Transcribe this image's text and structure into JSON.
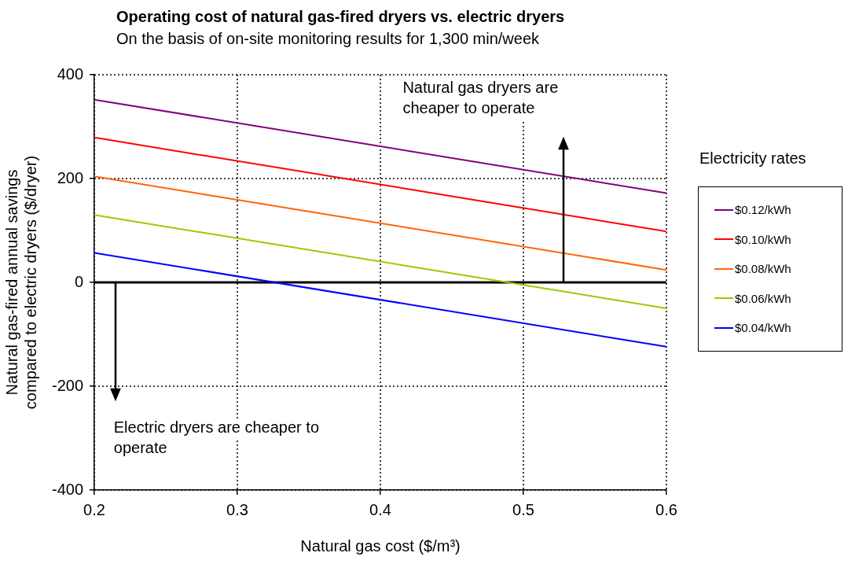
{
  "chart_data": {
    "type": "line",
    "title": "Operating cost of natural gas-fired dryers vs. electric dryers",
    "subtitle": "On the basis of on-site monitoring results for 1,300 min/week",
    "xlabel": "Natural gas cost ($/m³)",
    "ylabel": "Natural gas-fired annual savings compared to electric dryers ($/dryer)",
    "legend_title": "Electricity rates",
    "x": [
      0.2,
      0.6
    ],
    "series": [
      {
        "name": "$0.12/kWh",
        "color": "#800080",
        "values": [
          352,
          172
        ]
      },
      {
        "name": "$0.10/kWh",
        "color": "#ff0000",
        "values": [
          279,
          98
        ]
      },
      {
        "name": "$0.08/kWh",
        "color": "#ff6600",
        "values": [
          204,
          24
        ]
      },
      {
        "name": "$0.06/kWh",
        "color": "#99cc00",
        "values": [
          130,
          -50
        ]
      },
      {
        "name": "$0.04/kWh",
        "color": "#0000ff",
        "values": [
          57,
          -124
        ]
      }
    ],
    "xlim": [
      0.2,
      0.6
    ],
    "xticks": [
      0.2,
      0.3,
      0.4,
      0.5,
      0.6
    ],
    "ylim": [
      -400,
      400
    ],
    "yticks": [
      -400,
      -200,
      0,
      200,
      400
    ],
    "ref_lines": [
      {
        "axis": "y",
        "value": 0,
        "color": "#000000"
      }
    ],
    "annotations": [
      "Natural gas dryers are cheaper to operate",
      "Electric dryers are cheaper to operate"
    ],
    "grid": true,
    "legend": "right",
    "marker": "none",
    "line_style": "solid"
  }
}
